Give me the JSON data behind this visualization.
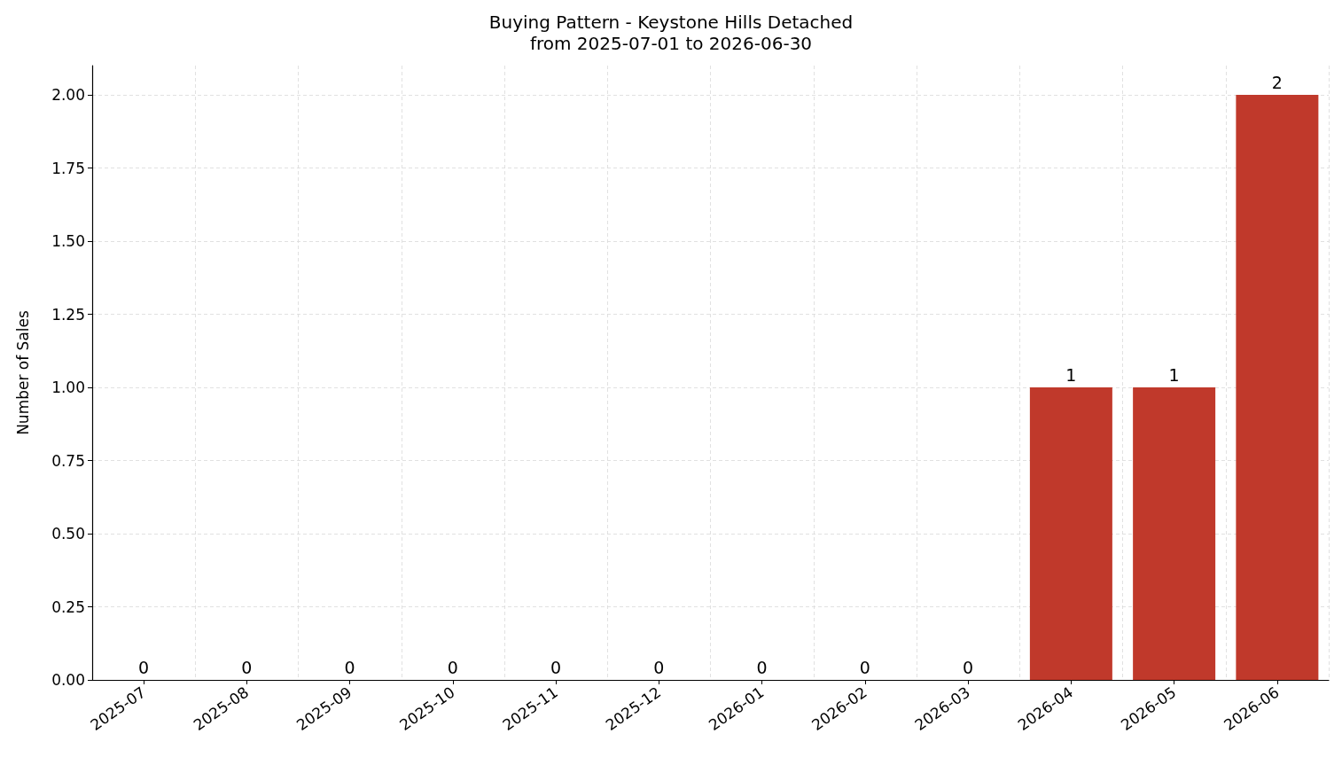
{
  "chart_data": {
    "type": "bar",
    "title": "Buying Pattern - Keystone Hills Detached",
    "subtitle": "from 2025-07-01 to 2026-06-30",
    "ylabel": "Number of Sales",
    "categories": [
      "2025-07",
      "2025-08",
      "2025-09",
      "2025-10",
      "2025-11",
      "2025-12",
      "2026-01",
      "2026-02",
      "2026-03",
      "2026-04",
      "2026-05",
      "2026-06"
    ],
    "values": [
      0,
      0,
      0,
      0,
      0,
      0,
      0,
      0,
      0,
      1,
      1,
      2
    ],
    "color": "#c0392b",
    "ylim": [
      0,
      2.1
    ],
    "yticks": [
      {
        "value": 0,
        "label": "0.00"
      },
      {
        "value": 0.25,
        "label": "0.25"
      },
      {
        "value": 0.5,
        "label": "0.50"
      },
      {
        "value": 0.75,
        "label": "0.75"
      },
      {
        "value": 1,
        "label": "1.00"
      },
      {
        "value": 1.25,
        "label": "1.25"
      },
      {
        "value": 1.5,
        "label": "1.50"
      },
      {
        "value": 1.75,
        "label": "1.75"
      },
      {
        "value": 2,
        "label": "2.00"
      }
    ],
    "grid": true,
    "data_labels": true
  }
}
